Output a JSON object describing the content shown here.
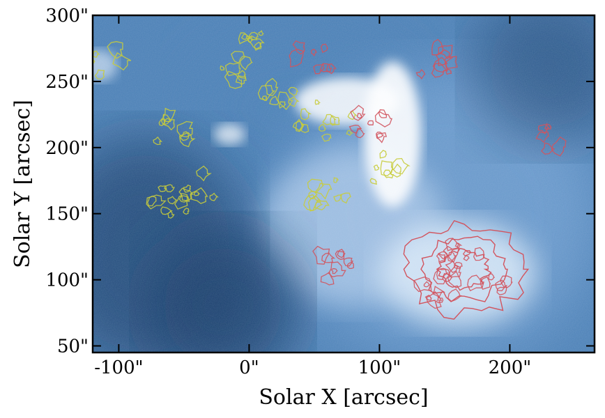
{
  "chart_data": {
    "type": "heatmap",
    "title": "",
    "xlabel": "Solar X [arcsec]",
    "ylabel": "Solar Y [arcsec]",
    "xlim": [
      -120,
      265
    ],
    "ylim": [
      45,
      300
    ],
    "xticks": [
      {
        "value": -100,
        "label": "-100\""
      },
      {
        "value": 0,
        "label": "0\""
      },
      {
        "value": 100,
        "label": "100\""
      },
      {
        "value": 200,
        "label": "200\""
      }
    ],
    "yticks": [
      {
        "value": 50,
        "label": "50\""
      },
      {
        "value": 100,
        "label": "100\""
      },
      {
        "value": 150,
        "label": "150\""
      },
      {
        "value": 200,
        "label": "200\""
      },
      {
        "value": 250,
        "label": "250\""
      },
      {
        "value": 300,
        "label": "300\""
      }
    ],
    "colormap": {
      "low": "#163a68",
      "mid": "#4a7fb5",
      "high": "#ffffff"
    },
    "contour_colors": {
      "yellow": "#c8cc3c",
      "red": "#d2545e"
    },
    "yellow_contours": [
      {
        "x": 5,
        "y": 285
      },
      {
        "x": -10,
        "y": 260
      },
      {
        "x": 20,
        "y": 240
      },
      {
        "x": 50,
        "y": 225
      },
      {
        "x": 70,
        "y": 215
      },
      {
        "x": 110,
        "y": 185
      },
      {
        "x": 60,
        "y": 165
      },
      {
        "x": -40,
        "y": 170
      },
      {
        "x": -60,
        "y": 215
      },
      {
        "x": -110,
        "y": 265
      },
      {
        "x": -60,
        "y": 160
      }
    ],
    "red_contours": [
      {
        "x": 160,
        "y": 110
      },
      {
        "x": 170,
        "y": 120
      },
      {
        "x": 185,
        "y": 100
      },
      {
        "x": 145,
        "y": 95
      },
      {
        "x": 50,
        "y": 270
      },
      {
        "x": 140,
        "y": 265
      },
      {
        "x": 95,
        "y": 215
      },
      {
        "x": 240,
        "y": 210
      },
      {
        "x": 70,
        "y": 110
      }
    ]
  }
}
